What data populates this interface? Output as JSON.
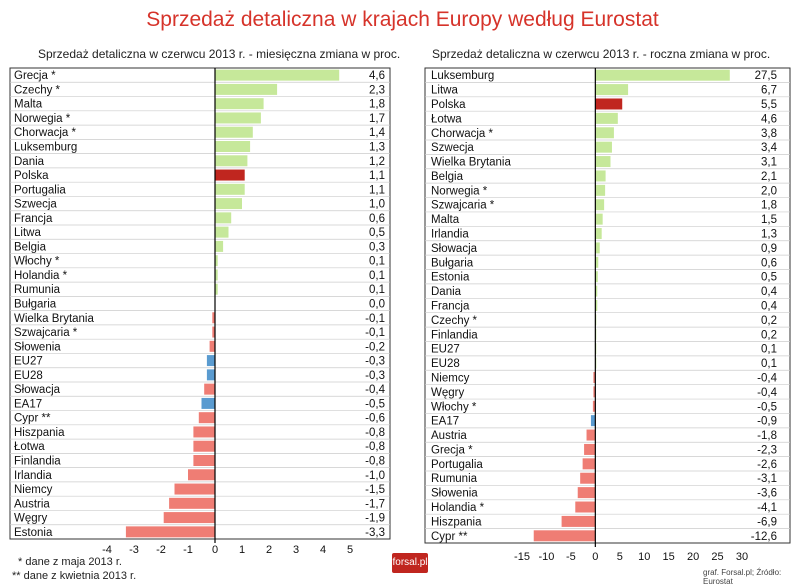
{
  "title": "Sprzedaż detaliczna w krajach Europy według Eurostat",
  "footnote1": "* dane z maja 2013 r.",
  "footnote2": "** dane z kwietnia 2013 r.",
  "logo": "forsal.pl",
  "source": "graf. Forsal.pl; Źródło: Eurostat",
  "colors": {
    "green": "#c6e89a",
    "red": "#c0261f",
    "blue": "#5a9bd0",
    "salmon": "#ef7d74",
    "title": "#d6332a"
  },
  "chart_data": [
    {
      "type": "bar",
      "orientation": "horizontal",
      "title": "Sprzedaż detaliczna w czerwcu 2013 r. - miesięczna zmiana w proc.",
      "xlim": [
        -4,
        5
      ],
      "xticks": [
        "-4",
        "-3",
        "-2",
        "-1",
        "0",
        "1",
        "2",
        "3",
        "4",
        "5"
      ],
      "categories": [
        "Grecja *",
        "Czechy *",
        "Malta",
        "Norwegia *",
        "Chorwacja *",
        "Luksemburg",
        "Dania",
        "Polska",
        "Portugalia",
        "Szwecja",
        "Francja",
        "Litwa",
        "Belgia",
        "Włochy *",
        "Holandia *",
        "Rumunia",
        "Bułgaria",
        "Wielka Brytania",
        "Szwajcaria *",
        "Słowenia",
        "EU27",
        "EU28",
        "Słowacja",
        "EA17",
        "Cypr **",
        "Hiszpania",
        "Łotwa",
        "Finlandia",
        "Irlandia",
        "Niemcy",
        "Austria",
        "Węgry",
        "Estonia"
      ],
      "values": [
        4.6,
        2.3,
        1.8,
        1.7,
        1.4,
        1.3,
        1.2,
        1.1,
        1.1,
        1.0,
        0.6,
        0.5,
        0.3,
        0.1,
        0.1,
        0.1,
        0.0,
        -0.1,
        -0.1,
        -0.2,
        -0.3,
        -0.3,
        -0.4,
        -0.5,
        -0.6,
        -0.8,
        -0.8,
        -0.8,
        -1.0,
        -1.5,
        -1.7,
        -1.9,
        -3.3
      ],
      "labels": [
        "4,6",
        "2,3",
        "1,8",
        "1,7",
        "1,4",
        "1,3",
        "1,2",
        "1,1",
        "1,1",
        "1,0",
        "0,6",
        "0,5",
        "0,3",
        "0,1",
        "0,1",
        "0,1",
        "0,0",
        "-0,1",
        "-0,1",
        "-0,2",
        "-0,3",
        "-0,3",
        "-0,4",
        "-0,5",
        "-0,6",
        "-0,8",
        "-0,8",
        "-0,8",
        "-1,0",
        "-1,5",
        "-1,7",
        "-1,9",
        "-3,3"
      ],
      "highlight": {
        "Polska": "red",
        "EU27": "blue",
        "EU28": "blue",
        "EA17": "blue"
      }
    },
    {
      "type": "bar",
      "orientation": "horizontal",
      "title": "Sprzedaż detaliczna w czerwcu 2013 r. - roczna zmiana w proc.",
      "xlim": [
        -15,
        30
      ],
      "xticks": [
        "-15",
        "-10",
        "-5",
        "0",
        "5",
        "10",
        "15",
        "20",
        "25",
        "30"
      ],
      "categories": [
        "Luksemburg",
        "Litwa",
        "Polska",
        "Łotwa",
        "Chorwacja *",
        "Szwecja",
        "Wielka Brytania",
        "Belgia",
        "Norwegia *",
        "Szwajcaria *",
        "Malta",
        "Irlandia",
        "Słowacja",
        "Bułgaria",
        "Estonia",
        "Dania",
        "Francja",
        "Czechy *",
        "Finlandia",
        "EU27",
        "EU28",
        "Niemcy",
        "Węgry",
        "Włochy *",
        "EA17",
        "Austria",
        "Grecja *",
        "Portugalia",
        "Rumunia",
        "Słowenia",
        "Holandia *",
        "Hiszpania",
        "Cypr **"
      ],
      "values": [
        27.5,
        6.7,
        5.5,
        4.6,
        3.8,
        3.4,
        3.1,
        2.1,
        2.0,
        1.8,
        1.5,
        1.3,
        0.9,
        0.6,
        0.5,
        0.4,
        0.4,
        0.2,
        0.2,
        0.1,
        0.1,
        -0.4,
        -0.4,
        -0.5,
        -0.9,
        -1.8,
        -2.3,
        -2.6,
        -3.1,
        -3.6,
        -4.1,
        -6.9,
        -12.6
      ],
      "labels": [
        "27,5",
        "6,7",
        "5,5",
        "4,6",
        "3,8",
        "3,4",
        "3,1",
        "2,1",
        "2,0",
        "1,8",
        "1,5",
        "1,3",
        "0,9",
        "0,6",
        "0,5",
        "0,4",
        "0,4",
        "0,2",
        "0,2",
        "0,1",
        "0,1",
        "-0,4",
        "-0,4",
        "-0,5",
        "-0,9",
        "-1,8",
        "-2,3",
        "-2,6",
        "-3,1",
        "-3,6",
        "-4,1",
        "-6,9",
        "-12,6"
      ],
      "highlight": {
        "Polska": "red",
        "EA17": "blue"
      }
    }
  ]
}
